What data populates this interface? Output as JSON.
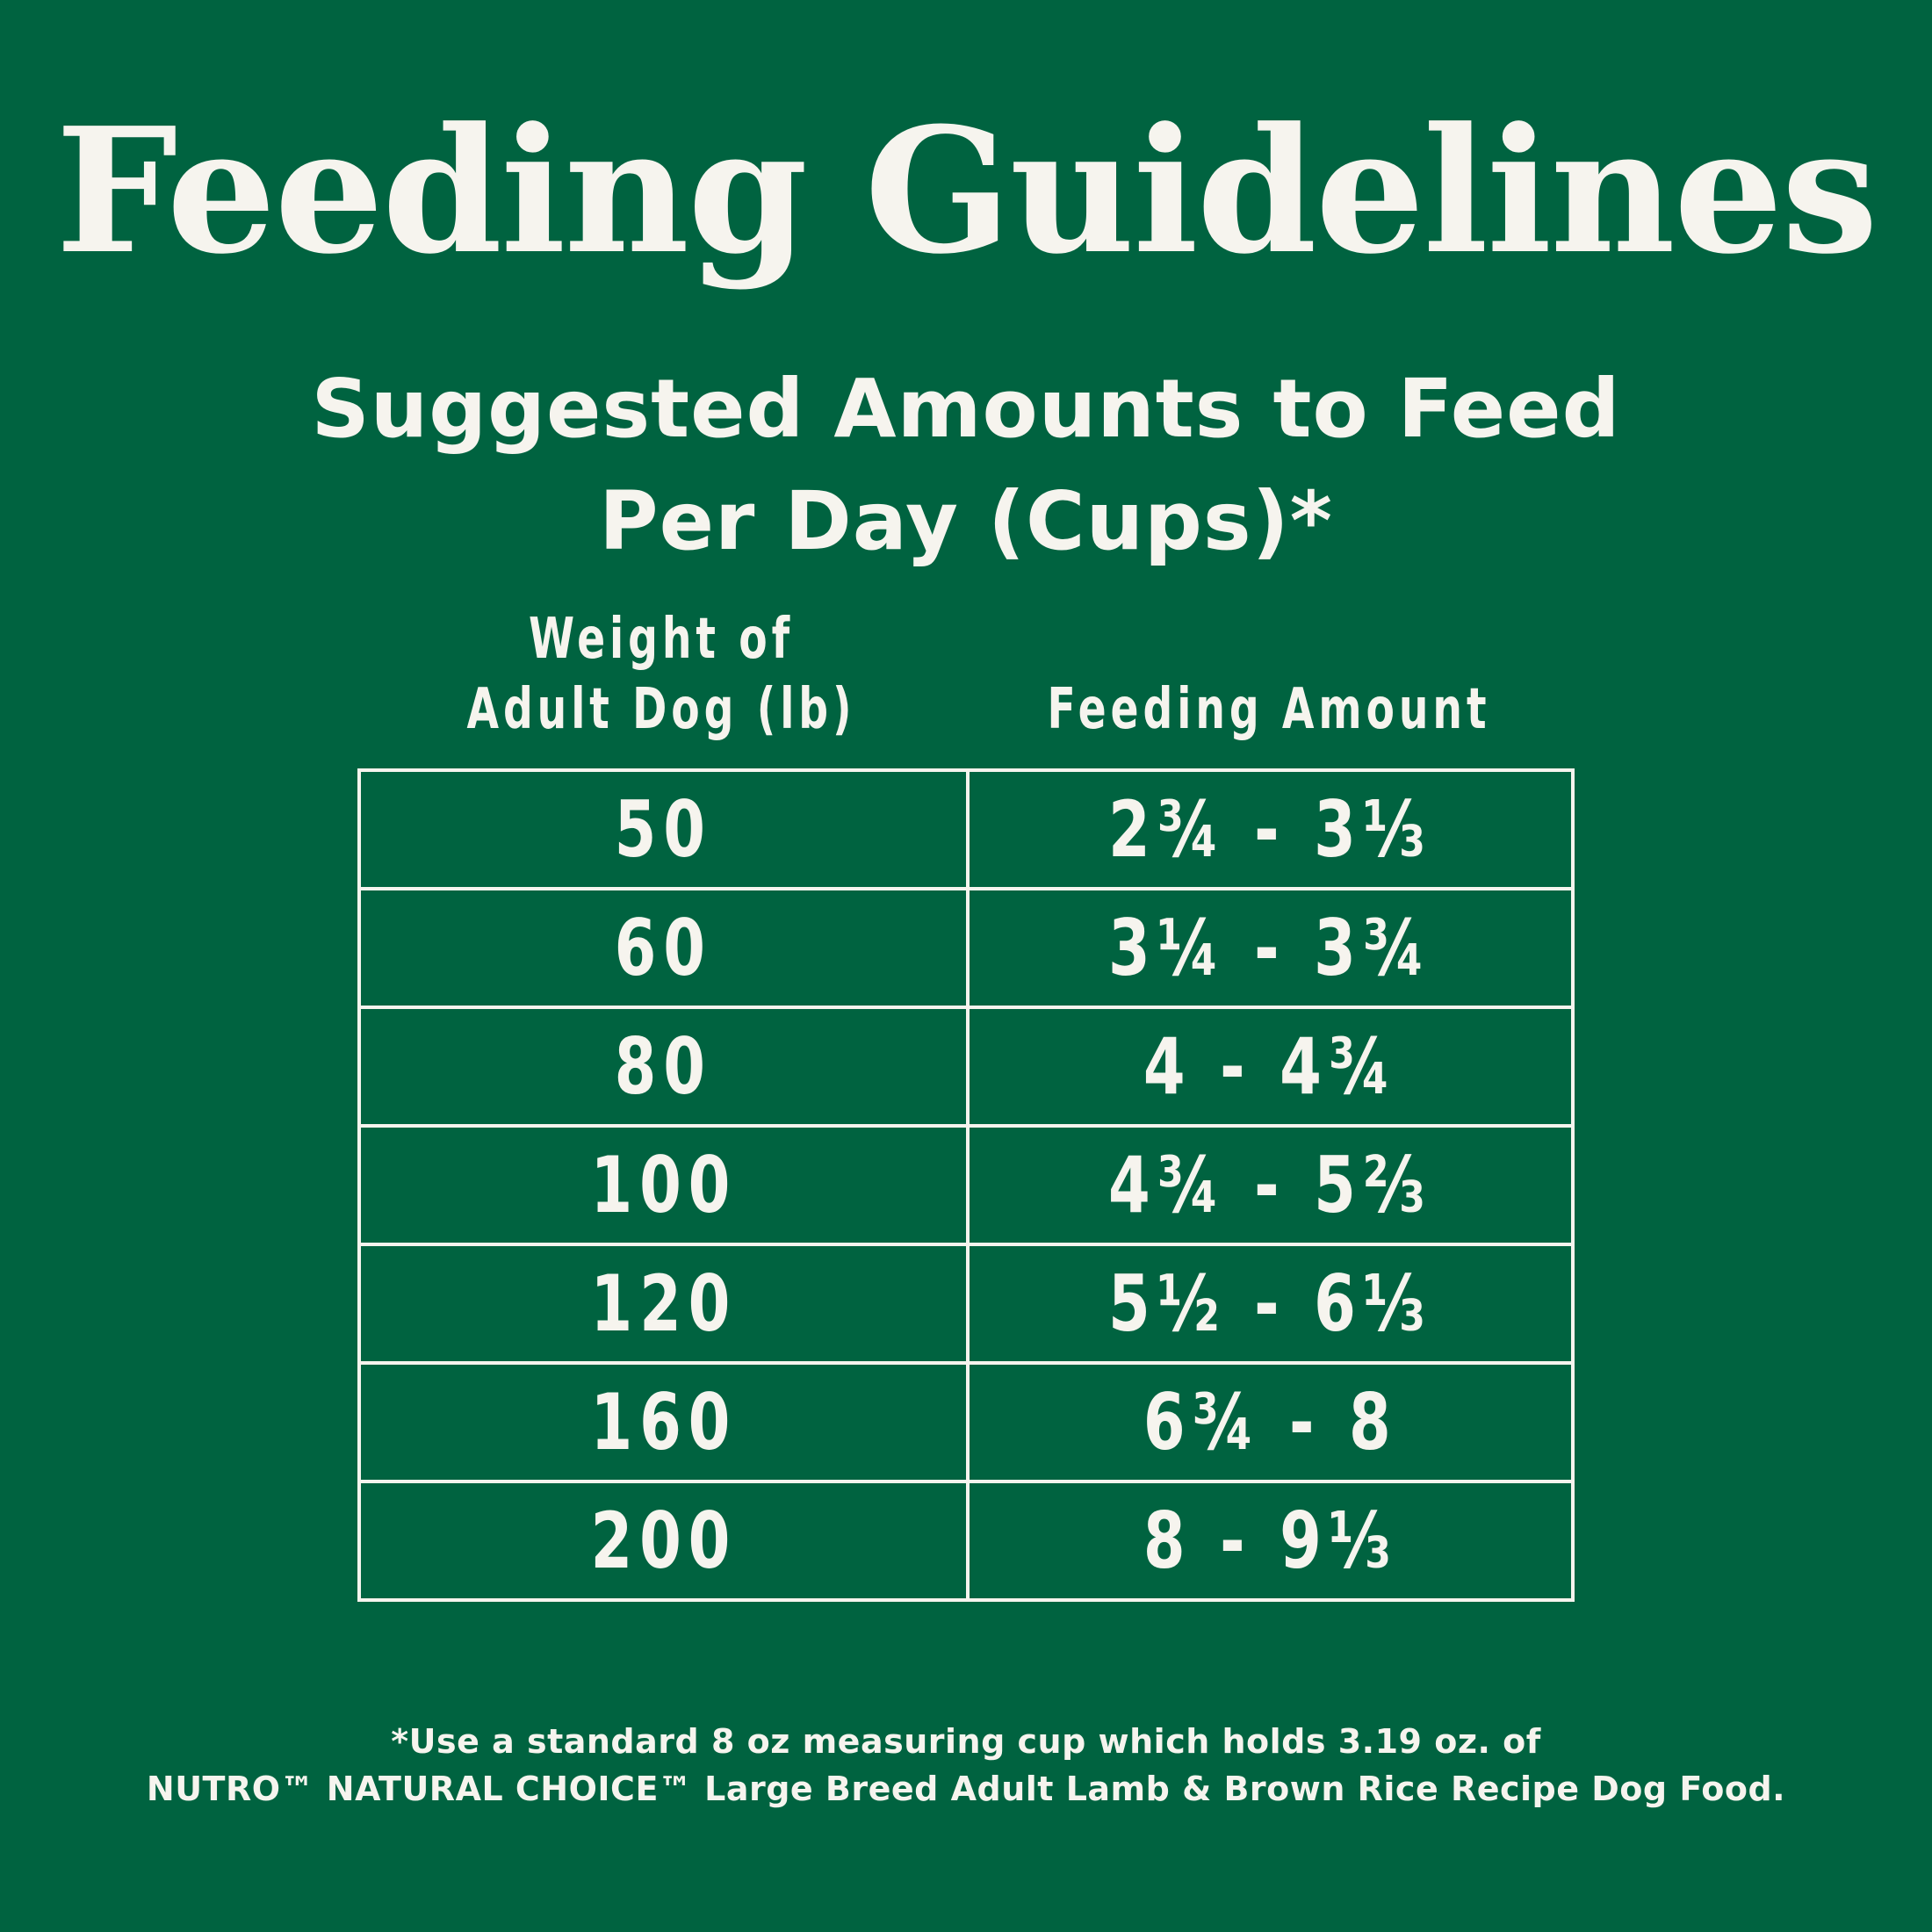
{
  "title": "Feeding Guidelines",
  "subtitle": {
    "line1": "Suggested Amounts to Feed",
    "line2": "Per Day (Cups)*"
  },
  "table": {
    "headers": {
      "weight_line1": "Weight of",
      "weight_line2": "Adult Dog (lb)",
      "amount": "Feeding Amount"
    },
    "rows": [
      {
        "weight": "50",
        "amount": "2¾ - 3⅓"
      },
      {
        "weight": "60",
        "amount": "3¼ - 3¾"
      },
      {
        "weight": "80",
        "amount": "4 - 4¾"
      },
      {
        "weight": "100",
        "amount": "4¾ - 5⅔"
      },
      {
        "weight": "120",
        "amount": "5½ - 6⅓"
      },
      {
        "weight": "160",
        "amount": "6¾ - 8"
      },
      {
        "weight": "200",
        "amount": "8 - 9⅓"
      }
    ]
  },
  "footnote": {
    "line1": "*Use a standard 8 oz measuring cup which holds 3.19 oz. of",
    "line2": "NUTRO™ NATURAL CHOICE™ Large Breed Adult Lamb & Brown Rice Recipe Dog Food."
  },
  "colors": {
    "background": "#006340",
    "text": "#f6f4ee"
  }
}
